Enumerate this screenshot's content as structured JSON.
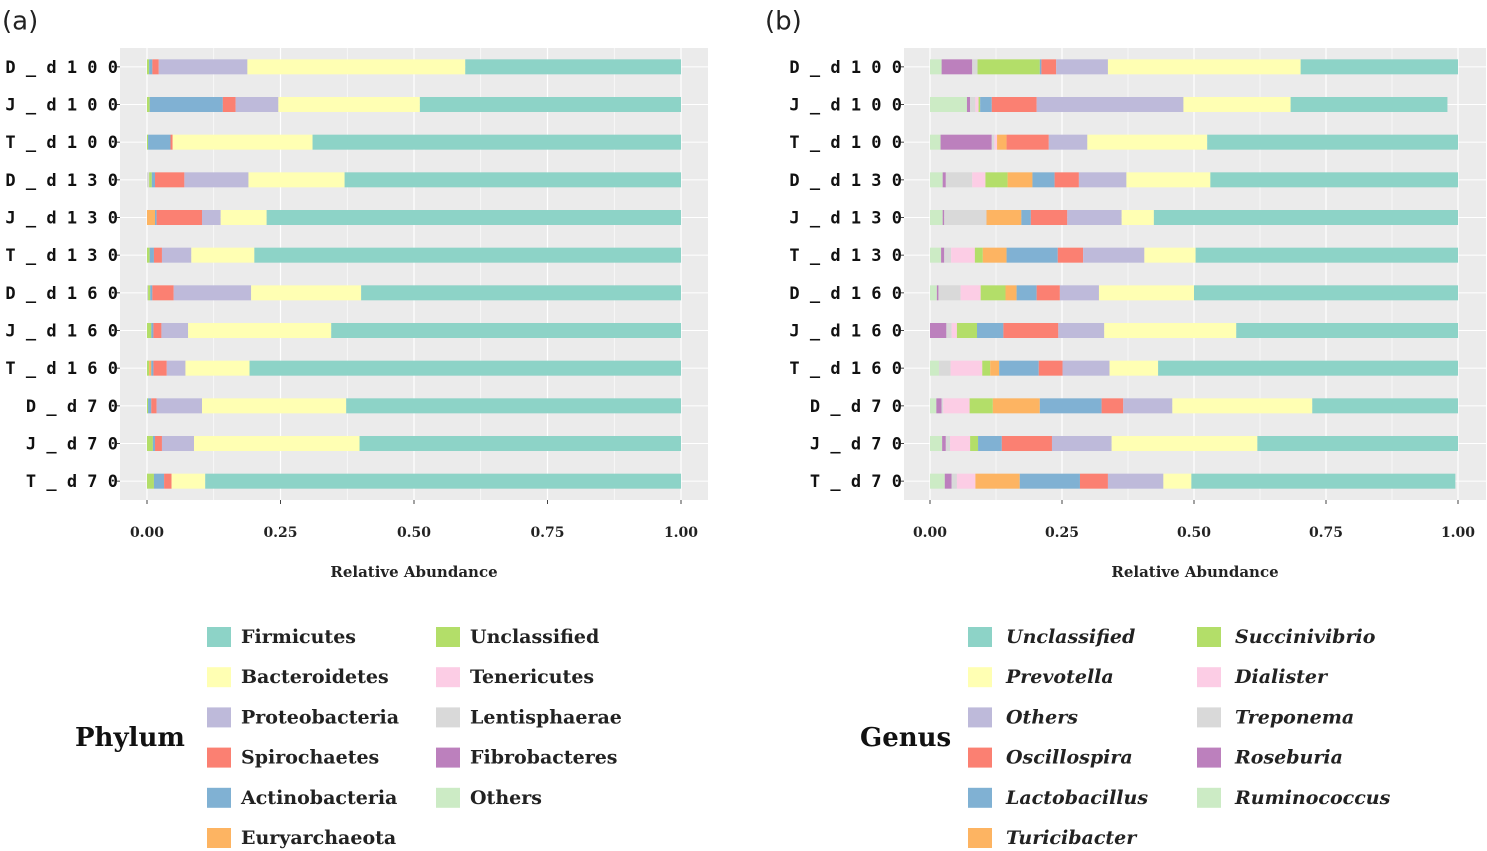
{
  "figure": {
    "panels": [
      "(a)",
      "(b)"
    ]
  },
  "chart_data": [
    {
      "type": "bar",
      "orientation": "horizontal",
      "stacked": true,
      "panel_label": "(a)",
      "title": "",
      "xlabel": "Relative Abundance",
      "ylabel": "",
      "xlim": [
        0,
        1
      ],
      "xticks": [
        "0.00",
        "0.25",
        "0.50",
        "0.75",
        "1.00"
      ],
      "grid": true,
      "legend_title": "Phylum",
      "legend_placement": "bottom",
      "categories": [
        "D_d100",
        "J_d100",
        "T_d100",
        "D_d130",
        "J_d130",
        "T_d130",
        "D_d160",
        "J_d160",
        "T_d160",
        "D_d70",
        "J_d70",
        "T_d70"
      ],
      "stack_order": [
        "Others",
        "Fibrobacteres",
        "Lentisphaerae",
        "Tenericutes",
        "Unclassified",
        "Euryarchaeota",
        "Actinobacteria",
        "Spirochaetes",
        "Proteobacteria",
        "Bacteroidetes",
        "Firmicutes"
      ],
      "series": [
        {
          "name": "Firmicutes",
          "color": "#8dd3c7",
          "values": [
            0.404,
            0.489,
            0.69,
            0.63,
            0.776,
            0.799,
            0.599,
            0.655,
            0.808,
            0.627,
            0.602,
            0.891
          ]
        },
        {
          "name": "Bacteroidetes",
          "color": "#ffffb3",
          "values": [
            0.408,
            0.265,
            0.262,
            0.18,
            0.086,
            0.118,
            0.206,
            0.268,
            0.12,
            0.27,
            0.31,
            0.063
          ]
        },
        {
          "name": "Proteobacteria",
          "color": "#bebada",
          "values": [
            0.166,
            0.08,
            0.0,
            0.12,
            0.035,
            0.055,
            0.145,
            0.05,
            0.035,
            0.085,
            0.06,
            0.0
          ]
        },
        {
          "name": "Spirochaetes",
          "color": "#fb8072",
          "values": [
            0.012,
            0.024,
            0.004,
            0.055,
            0.085,
            0.015,
            0.04,
            0.015,
            0.025,
            0.01,
            0.013,
            0.014
          ]
        },
        {
          "name": "Actinobacteria",
          "color": "#80b1d3",
          "values": [
            0.006,
            0.137,
            0.042,
            0.006,
            0.003,
            0.008,
            0.004,
            0.004,
            0.004,
            0.006,
            0.004,
            0.019
          ]
        },
        {
          "name": "Euryarchaeota",
          "color": "#fdb462",
          "values": [
            0.0,
            0.0,
            0.0,
            0.0,
            0.015,
            0.0,
            0.0,
            0.0,
            0.004,
            0.0,
            0.0,
            0.0
          ]
        },
        {
          "name": "Unclassified",
          "color": "#b3de69",
          "values": [
            0.004,
            0.005,
            0.002,
            0.005,
            0.0,
            0.005,
            0.004,
            0.008,
            0.004,
            0.002,
            0.011,
            0.013
          ]
        },
        {
          "name": "Tenericutes",
          "color": "#fccde5",
          "values": [
            0.0,
            0.0,
            0.0,
            0.0,
            0.0,
            0.0,
            0.0,
            0.0,
            0.0,
            0.0,
            0.0,
            0.0
          ]
        },
        {
          "name": "Lentisphaerae",
          "color": "#d9d9d9",
          "values": [
            0.0,
            0.0,
            0.0,
            0.004,
            0.0,
            0.0,
            0.002,
            0.0,
            0.0,
            0.0,
            0.0,
            0.0
          ]
        },
        {
          "name": "Fibrobacteres",
          "color": "#bc80bd",
          "values": [
            0.0,
            0.0,
            0.0,
            0.0,
            0.0,
            0.0,
            0.0,
            0.0,
            0.0,
            0.0,
            0.0,
            0.0
          ]
        },
        {
          "name": "Others",
          "color": "#ccebc5",
          "values": [
            0.0,
            0.0,
            0.0,
            0.0,
            0.0,
            0.0,
            0.0,
            0.0,
            0.0,
            0.0,
            0.0,
            0.0
          ]
        }
      ]
    },
    {
      "type": "bar",
      "orientation": "horizontal",
      "stacked": true,
      "panel_label": "(b)",
      "title": "",
      "xlabel": "Relative Abundance",
      "ylabel": "",
      "xlim": [
        0,
        1
      ],
      "xticks": [
        "0.00",
        "0.25",
        "0.50",
        "0.75",
        "1.00"
      ],
      "grid": true,
      "legend_title": "Genus",
      "legend_placement": "bottom",
      "italic_labels": true,
      "categories": [
        "D_d100",
        "J_d100",
        "T_d100",
        "D_d130",
        "J_d130",
        "T_d130",
        "D_d160",
        "J_d160",
        "T_d160",
        "D_d70",
        "J_d70",
        "T_d70"
      ],
      "stack_order": [
        "Ruminococcus",
        "Roseburia",
        "Treponema",
        "Dialister",
        "Succinivibrio",
        "Turicibacter",
        "Lactobacillus",
        "Oscillospira",
        "Others",
        "Prevotella",
        "Unclassified"
      ],
      "series": [
        {
          "name": "Unclassified",
          "color": "#8dd3c7",
          "values": [
            0.298,
            0.297,
            0.475,
            0.469,
            0.576,
            0.497,
            0.5,
            0.42,
            0.568,
            0.276,
            0.38,
            0.5
          ]
        },
        {
          "name": "Prevotella",
          "color": "#ffffb3",
          "values": [
            0.365,
            0.203,
            0.227,
            0.159,
            0.061,
            0.097,
            0.18,
            0.25,
            0.092,
            0.265,
            0.276,
            0.053
          ]
        },
        {
          "name": "Others",
          "color": "#bebada",
          "values": [
            0.098,
            0.278,
            0.073,
            0.09,
            0.103,
            0.116,
            0.074,
            0.087,
            0.089,
            0.093,
            0.113,
            0.105
          ]
        },
        {
          "name": "Oscillospira",
          "color": "#fb8072",
          "values": [
            0.028,
            0.085,
            0.08,
            0.046,
            0.069,
            0.048,
            0.044,
            0.104,
            0.045,
            0.041,
            0.095,
            0.053
          ]
        },
        {
          "name": "Lactobacillus",
          "color": "#80b1d3",
          "values": [
            0.003,
            0.022,
            0.0,
            0.042,
            0.018,
            0.097,
            0.038,
            0.05,
            0.075,
            0.117,
            0.045,
            0.114
          ]
        },
        {
          "name": "Turicibacter",
          "color": "#fdb462",
          "values": [
            0.0,
            0.0,
            0.018,
            0.047,
            0.066,
            0.045,
            0.021,
            0.0,
            0.017,
            0.089,
            0.0,
            0.084
          ]
        },
        {
          "name": "Succinivibrio",
          "color": "#b3de69",
          "values": [
            0.118,
            0.003,
            0.0,
            0.042,
            0.0,
            0.015,
            0.047,
            0.038,
            0.015,
            0.044,
            0.015,
            0.0
          ]
        },
        {
          "name": "Dialister",
          "color": "#fccde5",
          "values": [
            0.0,
            0.006,
            0.005,
            0.025,
            0.0,
            0.045,
            0.038,
            0.01,
            0.06,
            0.05,
            0.038,
            0.035
          ]
        },
        {
          "name": "Treponema",
          "color": "#d9d9d9",
          "values": [
            0.01,
            0.01,
            0.005,
            0.05,
            0.08,
            0.013,
            0.042,
            0.01,
            0.022,
            0.003,
            0.008,
            0.01
          ]
        },
        {
          "name": "Roseburia",
          "color": "#bc80bd",
          "values": [
            0.058,
            0.006,
            0.097,
            0.006,
            0.003,
            0.006,
            0.003,
            0.031,
            0.0,
            0.01,
            0.007,
            0.013
          ]
        },
        {
          "name": "Ruminococcus",
          "color": "#ccebc5",
          "values": [
            0.022,
            0.07,
            0.02,
            0.024,
            0.024,
            0.021,
            0.013,
            0.0,
            0.017,
            0.012,
            0.023,
            0.028
          ]
        }
      ]
    }
  ]
}
